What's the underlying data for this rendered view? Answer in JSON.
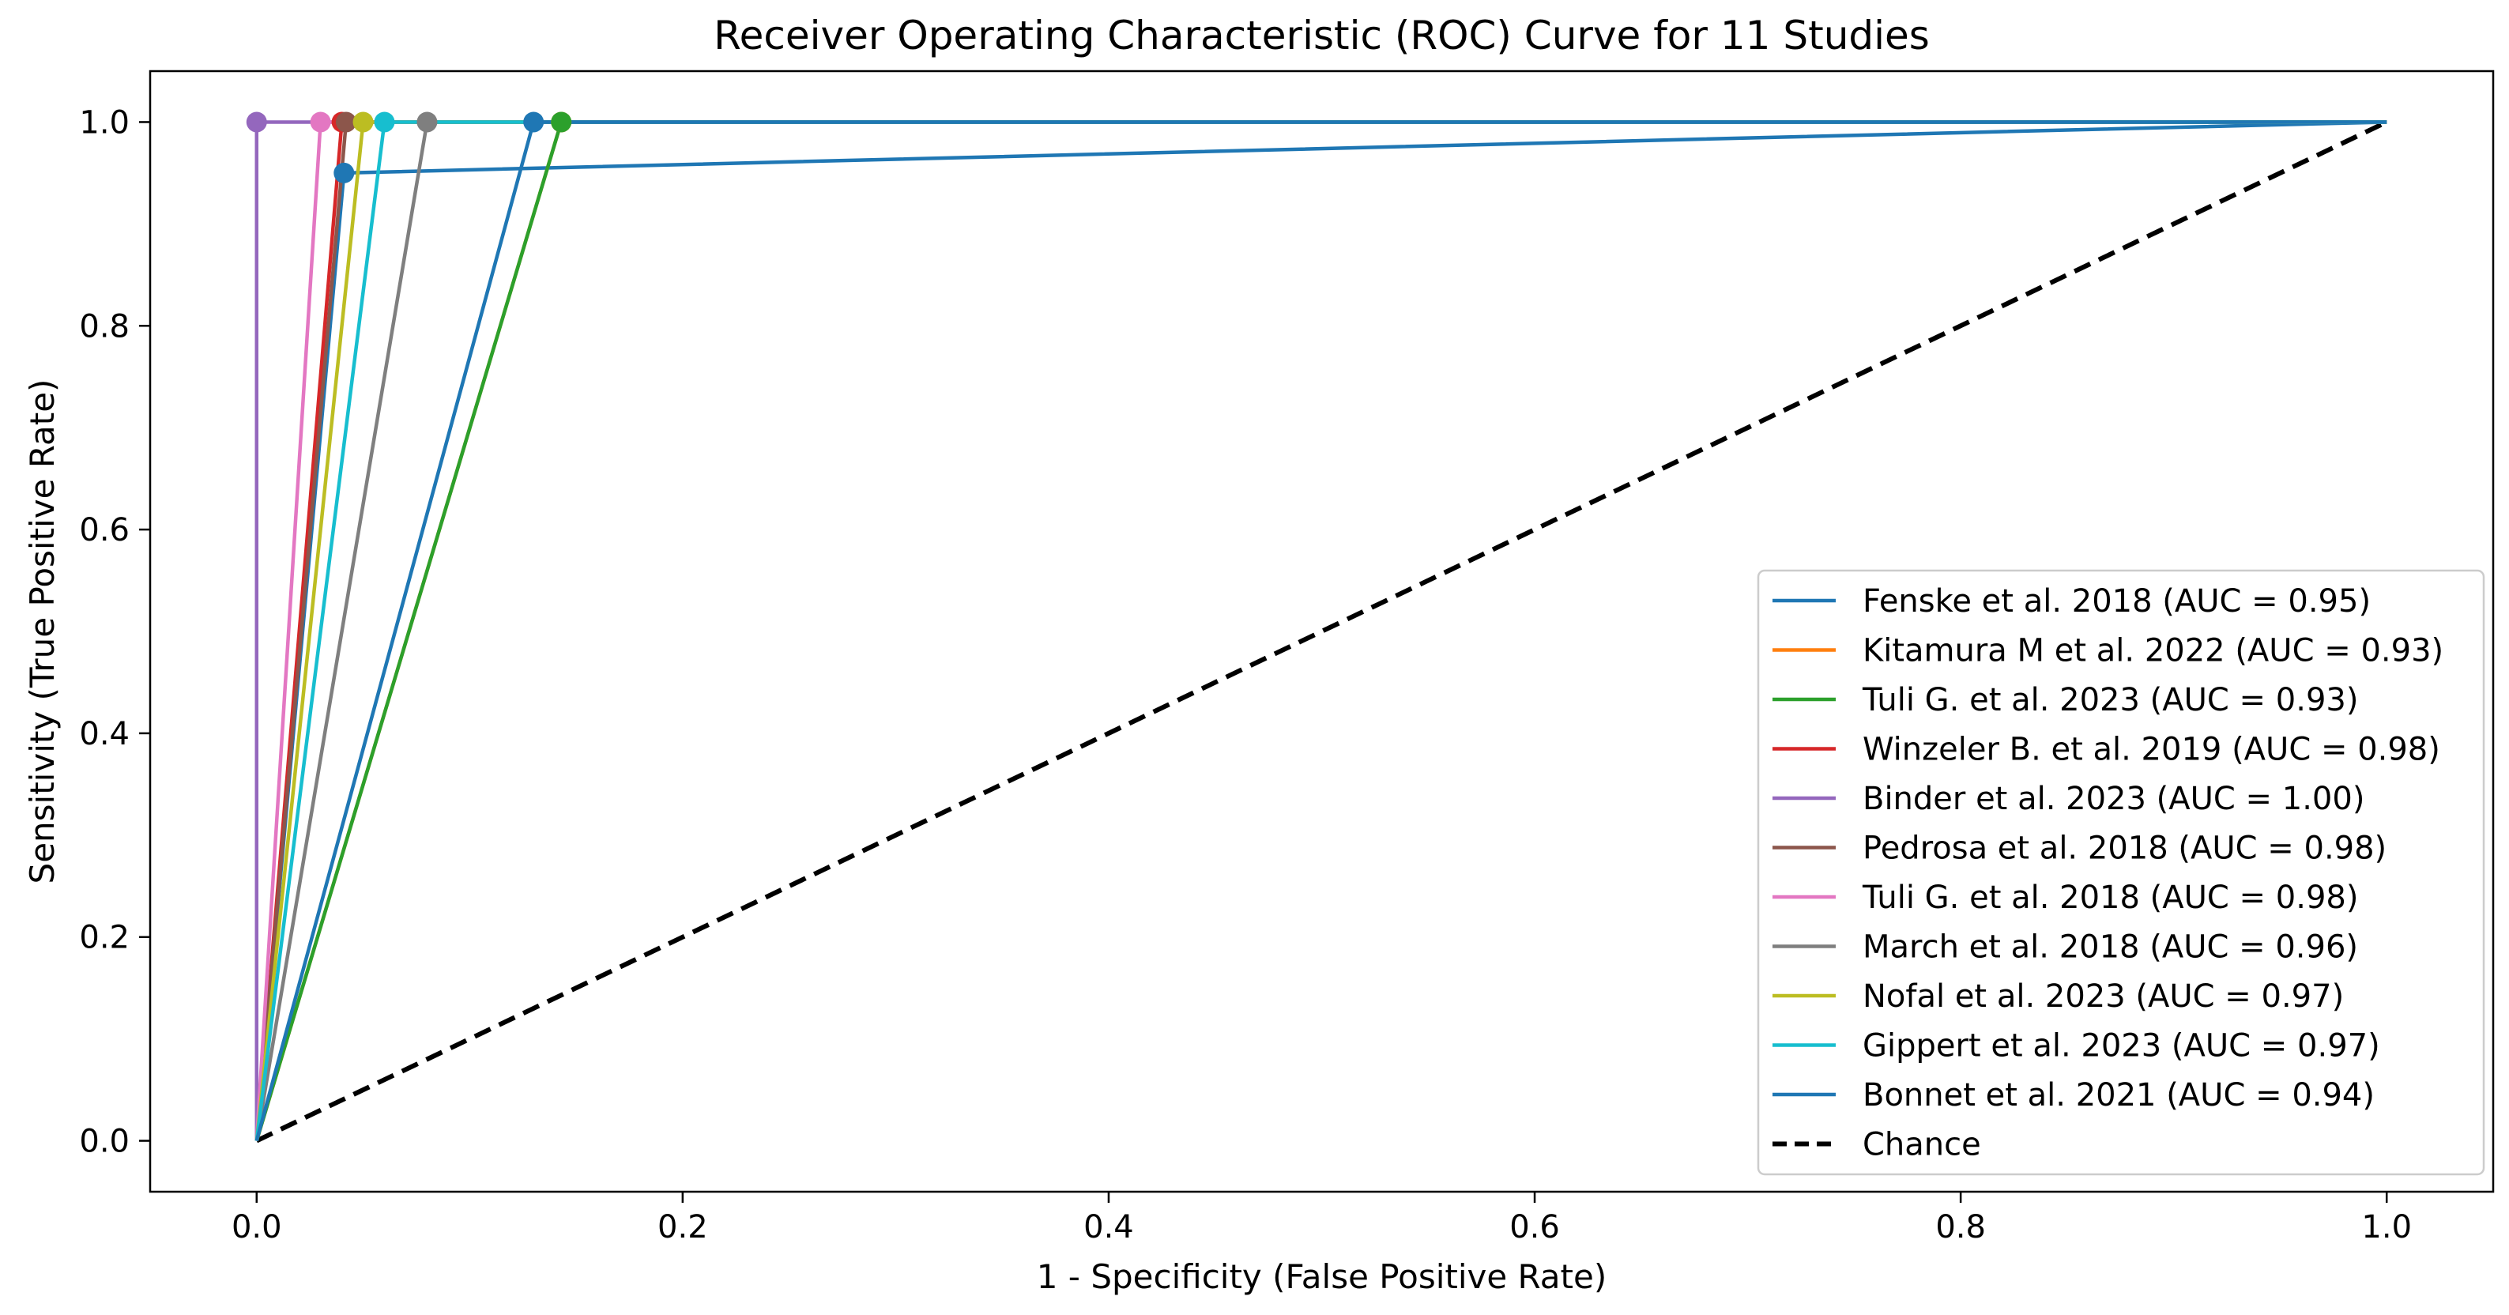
{
  "chart_data": {
    "type": "line",
    "title": "Receiver Operating Characteristic (ROC) Curve for 11 Studies",
    "xlabel": "1 - Specificity (False Positive Rate)",
    "ylabel": "Sensitivity (True Positive Rate)",
    "xlim": [
      -0.05,
      1.05
    ],
    "ylim": [
      -0.05,
      1.05
    ],
    "x_ticks": [
      0.0,
      0.2,
      0.4,
      0.6,
      0.8,
      1.0
    ],
    "y_ticks": [
      0.0,
      0.2,
      0.4,
      0.6,
      0.8,
      1.0
    ],
    "x_tick_labels": [
      "0.0",
      "0.2",
      "0.4",
      "0.6",
      "0.8",
      "1.0"
    ],
    "y_tick_labels": [
      "0.0",
      "0.2",
      "0.4",
      "0.6",
      "0.8",
      "1.0"
    ],
    "grid": false,
    "legend_position": "lower right",
    "series": [
      {
        "name": "Fenske et al. 2018 (AUC = 0.95)",
        "color": "#1f77b4",
        "x": [
          0,
          0.041,
          1
        ],
        "y": [
          0,
          0.95,
          1
        ]
      },
      {
        "name": "Kitamura M et al. 2022 (AUC = 0.93)",
        "color": "#ff7f0e",
        "x": [
          0,
          0.143,
          1
        ],
        "y": [
          0,
          1.0,
          1
        ]
      },
      {
        "name": "Tuli G. et al. 2023 (AUC = 0.93)",
        "color": "#2ca02c",
        "x": [
          0,
          0.143,
          1
        ],
        "y": [
          0,
          1.0,
          1
        ]
      },
      {
        "name": "Winzeler B. et al. 2019 (AUC = 0.98)",
        "color": "#d62728",
        "x": [
          0,
          0.04,
          1
        ],
        "y": [
          0,
          1.0,
          1
        ]
      },
      {
        "name": "Binder et al. 2023 (AUC = 1.00)",
        "color": "#9467bd",
        "x": [
          0,
          0.0,
          1
        ],
        "y": [
          0,
          1.0,
          1
        ]
      },
      {
        "name": "Pedrosa et al. 2018 (AUC = 0.98)",
        "color": "#8c564b",
        "x": [
          0,
          0.042,
          1
        ],
        "y": [
          0,
          1.0,
          1
        ]
      },
      {
        "name": "Tuli G. et al. 2018 (AUC = 0.98)",
        "color": "#e377c2",
        "x": [
          0,
          0.03,
          1
        ],
        "y": [
          0,
          1.0,
          1
        ]
      },
      {
        "name": "March et al. 2018 (AUC = 0.96)",
        "color": "#7f7f7f",
        "x": [
          0,
          0.08,
          1
        ],
        "y": [
          0,
          1.0,
          1
        ]
      },
      {
        "name": "Nofal et al. 2023 (AUC = 0.97)",
        "color": "#bcbd22",
        "x": [
          0,
          0.05,
          1
        ],
        "y": [
          0,
          1.0,
          1
        ]
      },
      {
        "name": "Gippert et al. 2023 (AUC = 0.97)",
        "color": "#17becf",
        "x": [
          0,
          0.06,
          1
        ],
        "y": [
          0,
          1.0,
          1
        ]
      },
      {
        "name": "Bonnet et al. 2021 (AUC = 0.94)",
        "color": "#1f77b4",
        "x": [
          0,
          0.13,
          1
        ],
        "y": [
          0,
          1.0,
          1
        ]
      }
    ],
    "reference_line": {
      "name": "Chance",
      "color": "#000000",
      "style": "dashed",
      "x": [
        0,
        1
      ],
      "y": [
        0,
        1
      ]
    }
  }
}
